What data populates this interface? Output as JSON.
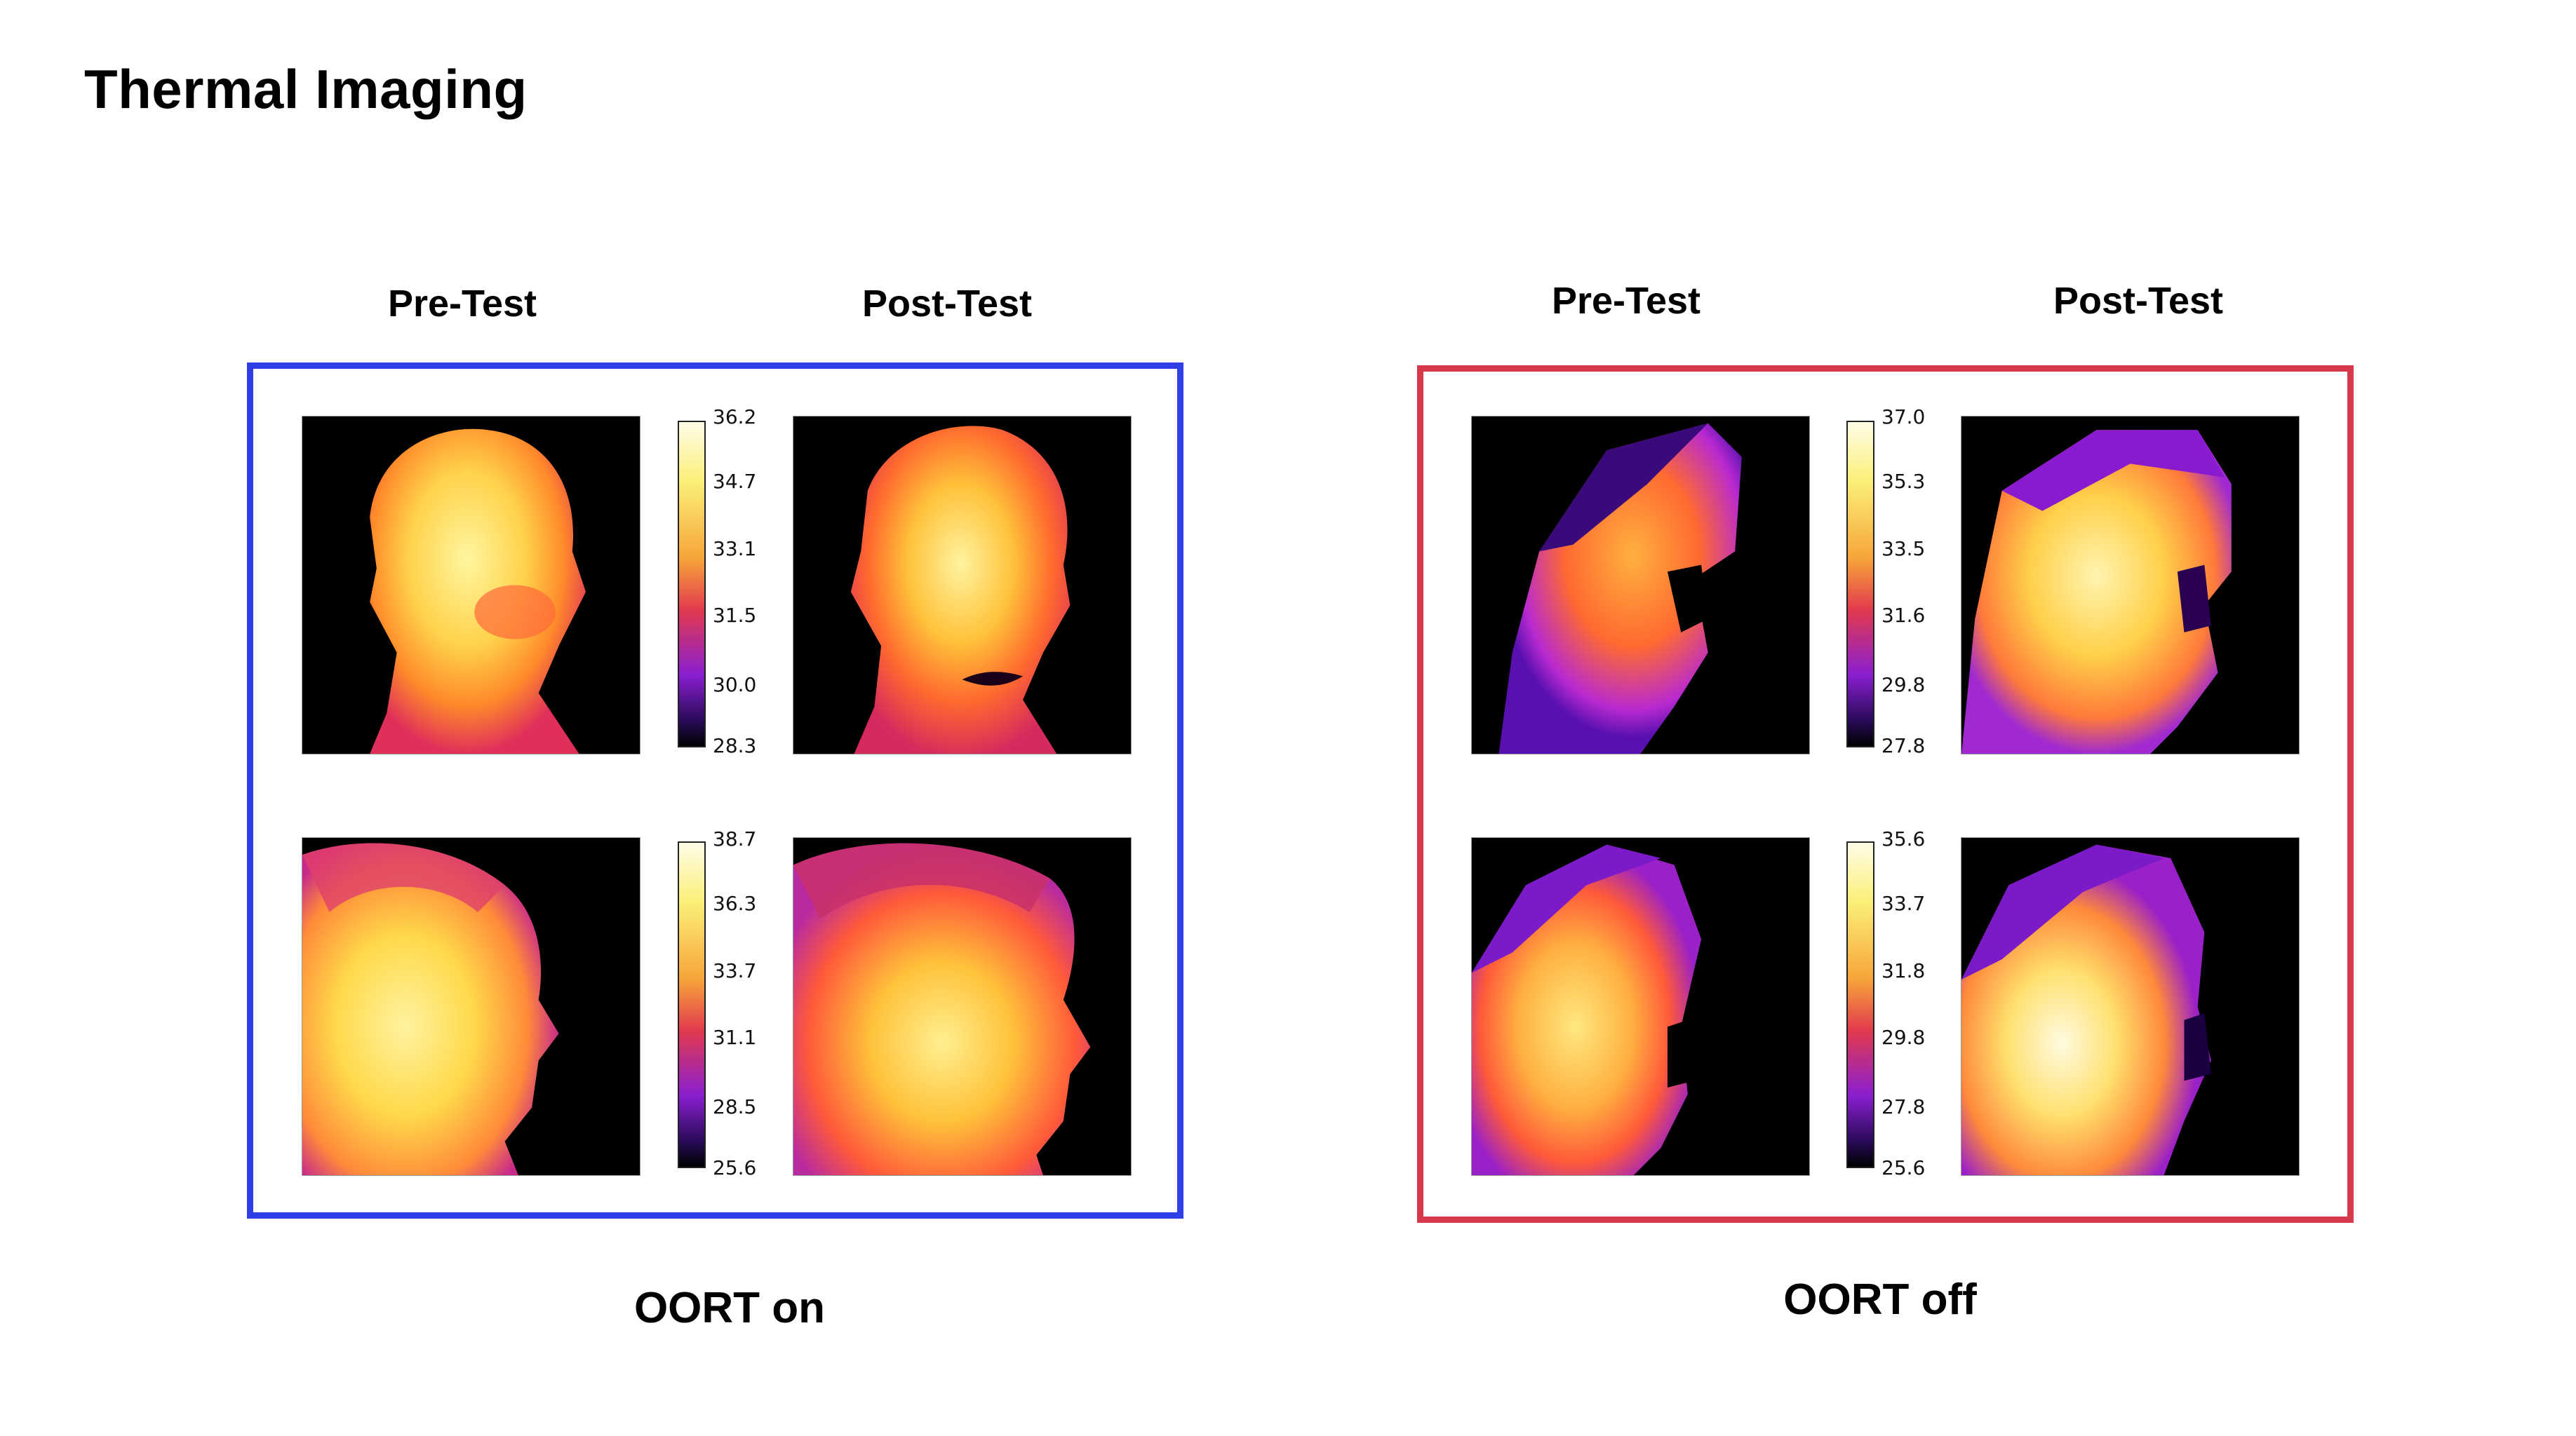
{
  "title": "Thermal Imaging",
  "groups": [
    {
      "caption": "OORT on",
      "frame_color": "#2f3ee6",
      "labels": {
        "pre": "Pre-Test",
        "post": "Post-Test"
      },
      "rows": [
        {
          "scale": [
            "36.2",
            "34.7",
            "33.1",
            "31.5",
            "30.0",
            "28.3"
          ]
        },
        {
          "scale": [
            "38.7",
            "36.3",
            "33.7",
            "31.1",
            "28.5",
            "25.6"
          ]
        }
      ]
    },
    {
      "caption": "OORT off",
      "frame_color": "#d63a4a",
      "labels": {
        "pre": "Pre-Test",
        "post": "Post-Test"
      },
      "rows": [
        {
          "scale": [
            "37.0",
            "35.3",
            "33.5",
            "31.6",
            "29.8",
            "27.8"
          ]
        },
        {
          "scale": [
            "35.6",
            "33.7",
            "31.8",
            "29.8",
            "27.8",
            "25.6"
          ]
        }
      ]
    }
  ],
  "icons": {
    "thermal_image": "thermal-face-image",
    "colorbar": "temperature-colorbar"
  }
}
